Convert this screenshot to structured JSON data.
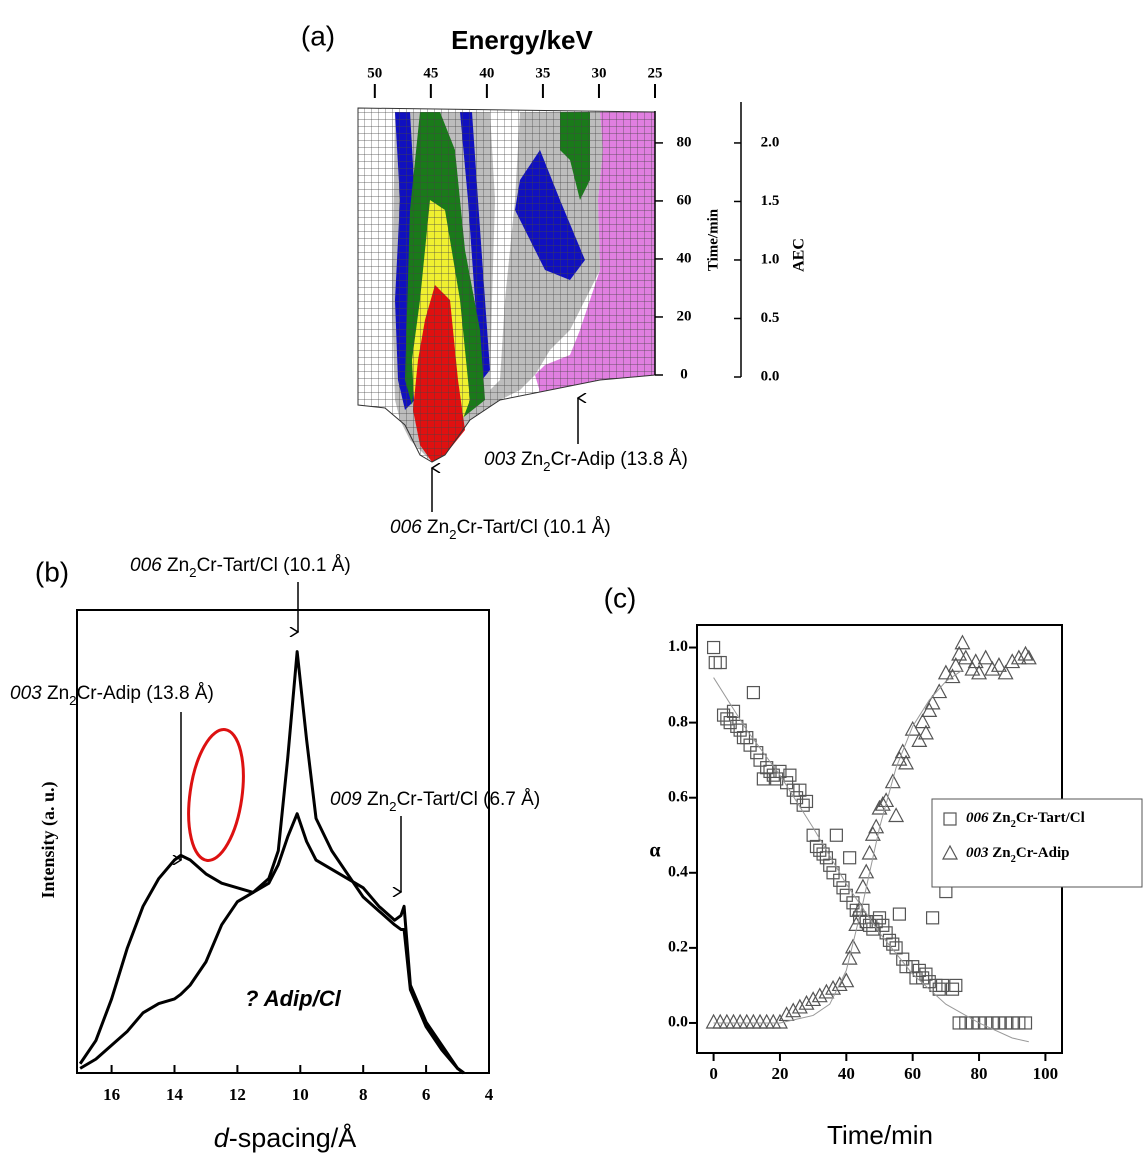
{
  "chart_data": [
    {
      "type": "surface",
      "title": "(a)",
      "xlabel": "Energy/keV",
      "ylabel": "Time/min",
      "y2label": "AEC",
      "xlim": [
        51.5,
        25
      ],
      "xticks": [
        50,
        45,
        40,
        35,
        30,
        25
      ],
      "ylim": [
        0,
        91
      ],
      "yticks": [
        0,
        20,
        40,
        60,
        80
      ],
      "y2lim": [
        0,
        2.35
      ],
      "y2ticks": [
        {
          "value": 0,
          "label": "0.0"
        },
        {
          "value": 0.5,
          "label": "0.5"
        },
        {
          "value": 1,
          "label": "1.0"
        },
        {
          "value": 1.5,
          "label": "1.5"
        },
        {
          "value": 2,
          "label": "2.0"
        }
      ],
      "annotations": [
        "003 Zn2Cr-Adip (13.8 Å)",
        "006 Zn2Cr-Tart/Cl (10.1 Å)"
      ]
    },
    {
      "type": "line",
      "title": "(b)",
      "xlabel": "d-spacing/Å",
      "ylabel": "Intensity (a. u.)",
      "xlim": [
        17.1,
        4
      ],
      "xticks": [
        16,
        14,
        12,
        10,
        8,
        6,
        4
      ],
      "ylim": [
        0,
        1
      ],
      "x": [
        17,
        16.5,
        16,
        15.5,
        15,
        14.5,
        14,
        13.8,
        13.5,
        13,
        12.5,
        12,
        11.5,
        11,
        10.7,
        10.4,
        10.1,
        9.8,
        9.5,
        9,
        8.5,
        8,
        7.5,
        7,
        6.8,
        6.7,
        6.5,
        6,
        5.5,
        5,
        4.8
      ],
      "series": [
        {
          "color": "#000000",
          "values": [
            0.02,
            0.07,
            0.16,
            0.27,
            0.36,
            0.42,
            0.46,
            0.47,
            0.46,
            0.43,
            0.41,
            0.4,
            0.39,
            0.41,
            0.45,
            0.51,
            0.56,
            0.5,
            0.46,
            0.44,
            0.42,
            0.4,
            0.36,
            0.33,
            0.34,
            0.36,
            0.19,
            0.11,
            0.06,
            0.01,
            0
          ]
        },
        {
          "color": "#000000",
          "values": [
            0.01,
            0.03,
            0.06,
            0.09,
            0.13,
            0.15,
            0.16,
            0.17,
            0.19,
            0.24,
            0.32,
            0.37,
            0.39,
            0.42,
            0.48,
            0.68,
            0.91,
            0.72,
            0.55,
            0.48,
            0.43,
            0.38,
            0.35,
            0.32,
            0.31,
            0.31,
            0.18,
            0.1,
            0.05,
            0.01,
            0
          ]
        }
      ],
      "annotations": [
        "006 Zn2Cr-Tart/Cl (10.1 Å)",
        "003 Zn2Cr-Adip (13.8 Å)",
        "009 Zn2Cr-Tart/Cl (6.7 Å)"
      ],
      "highlight_label": "? Adip/Cl",
      "highlight_color": "#dd1111"
    },
    {
      "type": "scatter",
      "title": "(c)",
      "xlabel": "Time/min",
      "ylabel": "α",
      "xlim": [
        -5,
        105
      ],
      "xticks": [
        0,
        20,
        40,
        60,
        80,
        100
      ],
      "ylim": [
        -0.08,
        1.06
      ],
      "yticks": [
        {
          "value": 0,
          "label": "0.0"
        },
        {
          "value": 0.2,
          "label": "0.2"
        },
        {
          "value": 0.4,
          "label": "0.4"
        },
        {
          "value": 0.6,
          "label": "0.6"
        },
        {
          "value": 0.8,
          "label": "0.8"
        },
        {
          "value": 1,
          "label": "1.0"
        }
      ],
      "legend": "center right",
      "series": [
        {
          "name": "006 Zn2Cr-Tart/Cl",
          "marker": "square",
          "color": "#555555",
          "x": [
            0,
            0.5,
            2,
            3,
            4,
            5,
            6,
            7,
            8,
            9,
            10,
            11,
            12,
            13,
            14,
            15,
            16,
            17,
            18,
            19,
            20,
            22,
            23,
            24,
            25,
            26,
            27,
            28,
            30,
            31,
            32,
            33,
            34,
            35,
            36,
            37,
            38,
            39,
            40,
            41,
            42,
            43,
            44,
            45,
            46,
            47,
            48,
            49,
            50,
            51,
            52,
            53,
            54,
            55,
            56,
            57,
            58,
            60,
            61,
            62,
            63,
            64,
            65,
            66,
            67,
            68,
            69,
            70,
            72,
            73,
            74,
            76,
            78,
            80,
            82,
            84,
            86,
            88,
            90,
            92,
            94
          ],
          "values": [
            1.0,
            0.96,
            0.96,
            0.82,
            0.81,
            0.8,
            0.83,
            0.79,
            0.78,
            0.76,
            0.76,
            0.74,
            0.88,
            0.72,
            0.7,
            0.65,
            0.68,
            0.67,
            0.66,
            0.65,
            0.67,
            0.64,
            0.66,
            0.62,
            0.6,
            0.62,
            0.58,
            0.59,
            0.5,
            0.47,
            0.46,
            0.45,
            0.44,
            0.42,
            0.4,
            0.5,
            0.38,
            0.36,
            0.34,
            0.44,
            0.32,
            0.3,
            0.28,
            0.3,
            0.27,
            0.26,
            0.25,
            0.27,
            0.28,
            0.26,
            0.24,
            0.22,
            0.21,
            0.2,
            0.29,
            0.17,
            0.15,
            0.15,
            0.12,
            0.14,
            0.12,
            0.13,
            0.11,
            0.28,
            0.1,
            0.09,
            0.1,
            0.35,
            0.09,
            0.1,
            0,
            0,
            0,
            0,
            0,
            0,
            0,
            0,
            0,
            0,
            0
          ]
        },
        {
          "name": "003 Zn2Cr-Adip",
          "marker": "triangle",
          "color": "#555555",
          "x": [
            0,
            2,
            4,
            6,
            8,
            10,
            12,
            14,
            16,
            18,
            20,
            22,
            24,
            26,
            28,
            30,
            32,
            34,
            36,
            38,
            40,
            41,
            42,
            43,
            44,
            45,
            46,
            47,
            48,
            49,
            50,
            51,
            52,
            54,
            55,
            56,
            57,
            58,
            60,
            62,
            63,
            64,
            65,
            66,
            68,
            70,
            72,
            73,
            74,
            75,
            76,
            78,
            79,
            80,
            82,
            84,
            86,
            88,
            90,
            92,
            94,
            95
          ],
          "values": [
            0,
            0,
            0,
            0,
            0,
            0,
            0,
            0,
            0,
            0,
            0,
            0.02,
            0.03,
            0.04,
            0.05,
            0.06,
            0.07,
            0.08,
            0.09,
            0.1,
            0.11,
            0.17,
            0.2,
            0.26,
            0.3,
            0.36,
            0.4,
            0.45,
            0.5,
            0.52,
            0.57,
            0.58,
            0.59,
            0.64,
            0.55,
            0.7,
            0.72,
            0.69,
            0.78,
            0.75,
            0.8,
            0.77,
            0.83,
            0.85,
            0.88,
            0.93,
            0.92,
            0.95,
            0.98,
            1.01,
            0.97,
            0.94,
            0.96,
            0.93,
            0.97,
            0.94,
            0.95,
            0.93,
            0.96,
            0.97,
            0.98,
            0.97
          ]
        },
        {
          "marker": "none",
          "color": "#999999",
          "x": [
            0,
            10,
            20,
            30,
            40,
            50,
            60,
            70,
            80,
            90,
            95
          ],
          "values": [
            0.92,
            0.78,
            0.66,
            0.52,
            0.37,
            0.24,
            0.13,
            0.05,
            0,
            -0.04,
            -0.05
          ]
        },
        {
          "marker": "none",
          "color": "#999999",
          "x": [
            0,
            20,
            30,
            35,
            40,
            45,
            50,
            55,
            60,
            65,
            70,
            75
          ],
          "values": [
            0,
            0,
            0.02,
            0.05,
            0.14,
            0.32,
            0.52,
            0.68,
            0.79,
            0.86,
            0.91,
            0.94
          ]
        }
      ]
    }
  ]
}
